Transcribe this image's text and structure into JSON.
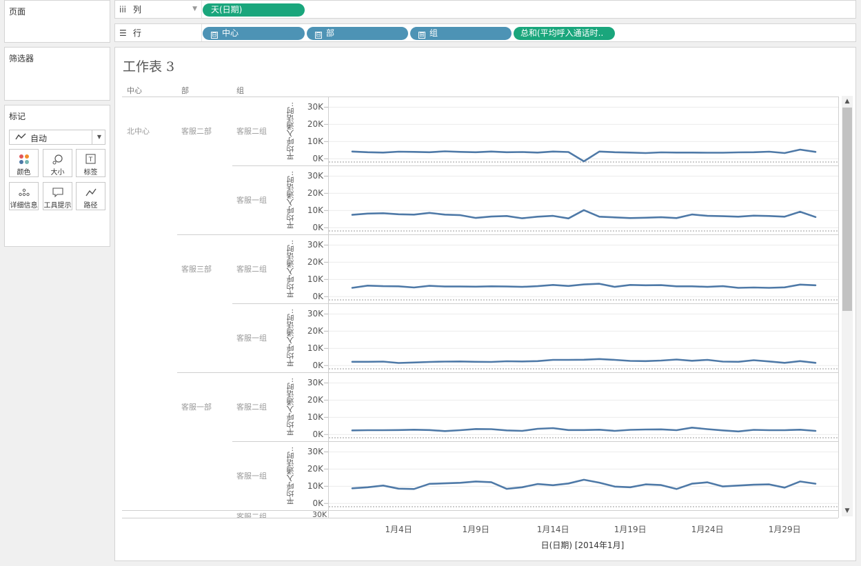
{
  "pages_panel": {
    "title": "页面"
  },
  "filters_panel": {
    "title": "筛选器"
  },
  "marks_panel": {
    "title": "标记",
    "mark_type": "自动",
    "buttons": [
      {
        "label": "颜色",
        "icon": "color-dots-icon"
      },
      {
        "label": "大小",
        "icon": "size-icon"
      },
      {
        "label": "标签",
        "icon": "label-icon"
      },
      {
        "label": "详细信息",
        "icon": "detail-icon"
      },
      {
        "label": "工具提示",
        "icon": "tooltip-icon"
      },
      {
        "label": "路径",
        "icon": "path-icon"
      }
    ]
  },
  "columns_shelf": {
    "label": "列",
    "pills": [
      {
        "label": "天(日期)",
        "color": "#1aa67c"
      }
    ]
  },
  "rows_shelf": {
    "label": "行",
    "pills": [
      {
        "label": "中心",
        "toggle": "⊟",
        "color": "#4d93b5"
      },
      {
        "label": "部",
        "toggle": "⊟",
        "color": "#4d93b5"
      },
      {
        "label": "组",
        "toggle": "⊞",
        "color": "#4d93b5"
      },
      {
        "label": "总和(平均呼入通话时..",
        "color": "#1aa67c"
      }
    ]
  },
  "sheet": {
    "title": "工作表 3",
    "headers": {
      "center": "中心",
      "dept": "部",
      "group": "组"
    },
    "axis_label": "平均呼入通话时..",
    "partial_group_label": "客服二组",
    "x_axis_title": "日(日期) [2014年1月]"
  },
  "chart_data": {
    "type": "line",
    "x": [
      "1月1日",
      "1月2日",
      "1月3日",
      "1月4日",
      "1月5日",
      "1月6日",
      "1月7日",
      "1月8日",
      "1月9日",
      "1月10日",
      "1月11日",
      "1月12日",
      "1月13日",
      "1月14日",
      "1月15日",
      "1月16日",
      "1月17日",
      "1月18日",
      "1月19日",
      "1月20日",
      "1月21日",
      "1月22日",
      "1月23日",
      "1月24日",
      "1月25日",
      "1月26日",
      "1月27日",
      "1月28日",
      "1月29日",
      "1月30日",
      "1月31日"
    ],
    "xticks": [
      "1月4日",
      "1月9日",
      "1月14日",
      "1月19日",
      "1月24日",
      "1月29日"
    ],
    "yticks": [
      "30K",
      "20K",
      "10K",
      "0K"
    ],
    "ylim": [
      -1500,
      33000
    ],
    "xlabel": "日(日期) [2014年1月]",
    "ylabel": "平均呼入通话时..",
    "color": "#4e79a7",
    "panels": [
      {
        "center": "北中心",
        "dept": "客服二部",
        "group": "客服二组",
        "values": [
          4200,
          3800,
          3600,
          4100,
          4000,
          3800,
          4300,
          4000,
          3800,
          4200,
          3800,
          3900,
          3600,
          4200,
          3900,
          -1500,
          4200,
          3800,
          3600,
          3300,
          3700,
          3600,
          3600,
          3500,
          3500,
          3700,
          3800,
          4100,
          3300,
          5300,
          4000
        ]
      },
      {
        "center": "",
        "dept": "",
        "group": "客服一组",
        "values": [
          7500,
          8200,
          8400,
          7800,
          7600,
          8600,
          7600,
          7300,
          5700,
          6500,
          6800,
          5500,
          6400,
          6900,
          5400,
          10200,
          6400,
          6000,
          5600,
          5800,
          6100,
          5600,
          7700,
          6900,
          6700,
          6400,
          7000,
          6800,
          6400,
          9300,
          6200
        ]
      },
      {
        "center": "",
        "dept": "客服三部",
        "group": "客服二组",
        "values": [
          5100,
          6400,
          6100,
          6000,
          5300,
          6300,
          5900,
          5900,
          5800,
          6000,
          5900,
          5700,
          6100,
          6800,
          6200,
          7100,
          7500,
          5700,
          6800,
          6600,
          6700,
          6000,
          6000,
          5700,
          6100,
          5100,
          5300,
          5100,
          5400,
          7000,
          6600
        ]
      },
      {
        "center": "",
        "dept": "",
        "group": "客服一组",
        "values": [
          2200,
          2200,
          2300,
          1500,
          1800,
          2100,
          2300,
          2400,
          2200,
          2100,
          2500,
          2400,
          2600,
          3300,
          3300,
          3400,
          3800,
          3300,
          2700,
          2600,
          2900,
          3500,
          2800,
          3300,
          2300,
          2200,
          3100,
          2400,
          1600,
          2600,
          1600
        ]
      },
      {
        "center": "",
        "dept": "客服一部",
        "group": "客服二组",
        "values": [
          2400,
          2500,
          2500,
          2600,
          2800,
          2600,
          2000,
          2500,
          3200,
          3100,
          2400,
          2100,
          3300,
          3700,
          2600,
          2600,
          2800,
          2100,
          2700,
          2900,
          3000,
          2500,
          4000,
          3100,
          2400,
          1800,
          2700,
          2500,
          2500,
          2800,
          2100
        ]
      },
      {
        "center": "",
        "dept": "",
        "group": "客服一组",
        "values": [
          8800,
          9400,
          10400,
          8600,
          8400,
          11400,
          11700,
          12000,
          12800,
          12400,
          8500,
          9400,
          11300,
          10600,
          11600,
          13800,
          12100,
          9800,
          9400,
          11100,
          10700,
          8400,
          11500,
          12300,
          9900,
          10400,
          10900,
          11100,
          9200,
          12800,
          11500
        ]
      }
    ]
  }
}
